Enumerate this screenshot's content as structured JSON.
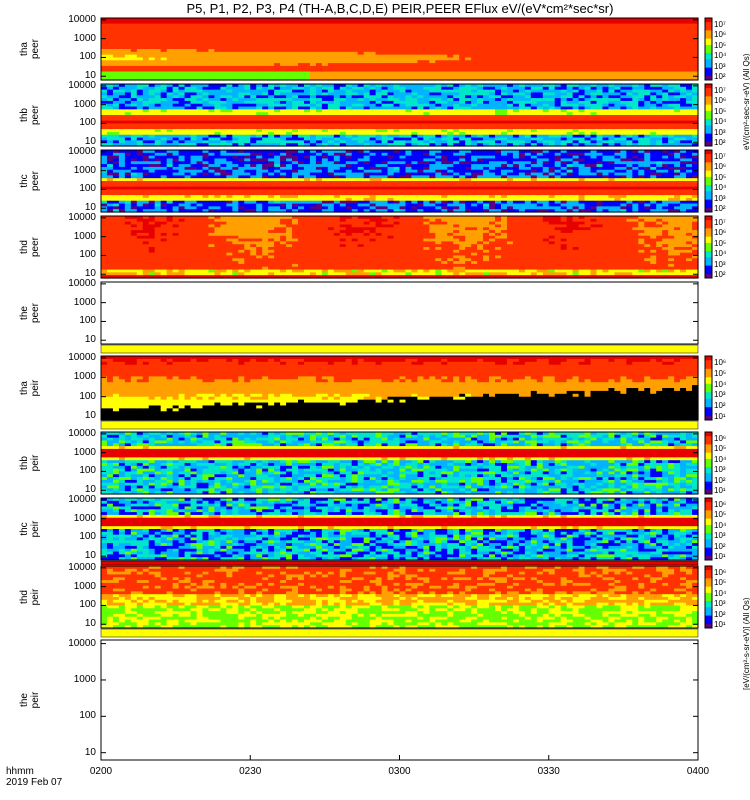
{
  "title": "P5, P1, P2, P3, P4 (TH-A,B,C,D,E) PEIR,PEER EFlux eV/(eV*cm²*sec*sr)",
  "x_axis": {
    "ticks": [
      "0200",
      "0230",
      "0300",
      "0330",
      "0400"
    ],
    "row1": "hhmm",
    "row2": "2019 Feb 07"
  },
  "y_ticks": [
    "10000",
    "1000",
    "100",
    "10"
  ],
  "colorbar_top_label": "eV/(cm²-sec-sr-eV) (All Qs)",
  "colorbar_bottom_label": "[eV/(cm²-s-sr-eV)] (All Qs)",
  "colorbar_ticks_top": [
    "10⁷",
    "10⁶",
    "10⁵",
    "10⁴",
    "10³",
    "10²"
  ],
  "colorbar_ticks_bottom": [
    "10⁶",
    "10⁵",
    "10⁴",
    "10³",
    "10²",
    "10¹"
  ],
  "colors": {
    "scale": [
      "#5a0082",
      "#0000ff",
      "#00b4ff",
      "#00e6c8",
      "#64ff00",
      "#ffff00",
      "#ffa000",
      "#ff3200",
      "#e60000"
    ]
  },
  "chart_data": [
    {
      "type": "heatmap",
      "ylabel": "tha peer",
      "ylim": [
        10,
        10000
      ],
      "yscale": "log",
      "profile": "tha_peer"
    },
    {
      "type": "heatmap",
      "ylabel": "thb peer",
      "ylim": [
        10,
        10000
      ],
      "yscale": "log",
      "profile": "thb_peer"
    },
    {
      "type": "heatmap",
      "ylabel": "thc peer",
      "ylim": [
        10,
        10000
      ],
      "yscale": "log",
      "profile": "thc_peer"
    },
    {
      "type": "heatmap",
      "ylabel": "thd peer",
      "ylim": [
        10,
        10000
      ],
      "yscale": "log",
      "profile": "thd_peer"
    },
    {
      "type": "heatmap",
      "ylabel": "the peer",
      "ylim": [
        10,
        10000
      ],
      "yscale": "log",
      "profile": "empty"
    },
    {
      "type": "heatmap",
      "ylabel": "tha peir",
      "ylim": [
        10,
        10000
      ],
      "yscale": "log",
      "profile": "tha_peir"
    },
    {
      "type": "heatmap",
      "ylabel": "thb peir",
      "ylim": [
        10,
        10000
      ],
      "yscale": "log",
      "profile": "thb_peir"
    },
    {
      "type": "heatmap",
      "ylabel": "thc peir",
      "ylim": [
        10,
        10000
      ],
      "yscale": "log",
      "profile": "thc_peir"
    },
    {
      "type": "heatmap",
      "ylabel": "thd peir",
      "ylim": [
        10,
        10000
      ],
      "yscale": "log",
      "profile": "thd_peir"
    },
    {
      "type": "heatmap",
      "ylabel": "the peir",
      "ylim": [
        10,
        10000
      ],
      "yscale": "log",
      "profile": "empty"
    }
  ]
}
